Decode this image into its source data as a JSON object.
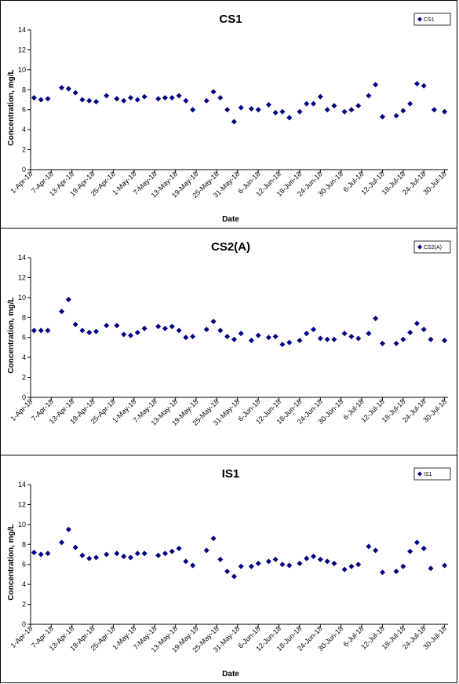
{
  "chart_data": [
    {
      "type": "scatter",
      "title": "CS1",
      "xlabel": "Date",
      "ylabel": "Concentration, mg/L",
      "legend": "CS1",
      "legend_position": "top-right",
      "grid": false,
      "ylim": [
        0,
        14
      ],
      "yticks": [
        "0",
        "2",
        "4",
        "6",
        "8",
        "10",
        "12",
        "14"
      ],
      "xlim": [
        "1-Apr-18",
        "31-Jul-18"
      ],
      "xticks": [
        "1-Apr-18",
        "7-Apr-18",
        "13-Apr-18",
        "19-Apr-18",
        "25-Apr-18",
        "1-May-18",
        "7-May-18",
        "13-May-18",
        "19-May-18",
        "25-May-18",
        "31-May-18",
        "6-Jun-18",
        "12-Jun-18",
        "18-Jun-18",
        "24-Jun-18",
        "30-Jun-18",
        "6-Jul-18",
        "12-Jul-18",
        "18-Jul-18",
        "24-Jul-18",
        "30-Jul-18"
      ],
      "marker_color": "#000080",
      "x": [
        "2-Apr-18",
        "4-Apr-18",
        "6-Apr-18",
        "10-Apr-18",
        "12-Apr-18",
        "14-Apr-18",
        "16-Apr-18",
        "18-Apr-18",
        "20-Apr-18",
        "23-Apr-18",
        "26-Apr-18",
        "28-Apr-18",
        "30-Apr-18",
        "2-May-18",
        "4-May-18",
        "8-May-18",
        "10-May-18",
        "12-May-18",
        "14-May-18",
        "16-May-18",
        "18-May-18",
        "22-May-18",
        "24-May-18",
        "26-May-18",
        "28-May-18",
        "30-May-18",
        "1-Jun-18",
        "4-Jun-18",
        "6-Jun-18",
        "9-Jun-18",
        "11-Jun-18",
        "13-Jun-18",
        "15-Jun-18",
        "18-Jun-18",
        "20-Jun-18",
        "22-Jun-18",
        "24-Jun-18",
        "26-Jun-18",
        "28-Jun-18",
        "1-Jul-18",
        "3-Jul-18",
        "5-Jul-18",
        "8-Jul-18",
        "10-Jul-18",
        "12-Jul-18",
        "16-Jul-18",
        "18-Jul-18",
        "20-Jul-18",
        "22-Jul-18",
        "24-Jul-18",
        "27-Jul-18",
        "30-Jul-18"
      ],
      "y": [
        7.2,
        7.0,
        7.1,
        8.2,
        8.1,
        7.7,
        7.0,
        6.9,
        6.8,
        7.4,
        7.1,
        6.9,
        7.2,
        7.0,
        7.3,
        7.1,
        7.2,
        7.2,
        7.4,
        6.9,
        6.0,
        6.9,
        7.8,
        7.2,
        6.0,
        4.8,
        6.2,
        6.1,
        6.0,
        6.5,
        5.7,
        5.8,
        5.2,
        5.8,
        6.6,
        6.6,
        7.3,
        6.0,
        6.4,
        5.8,
        6.0,
        6.4,
        7.4,
        8.5,
        5.3,
        5.4,
        5.9,
        6.6,
        8.6,
        8.4,
        6.0,
        5.8
      ]
    },
    {
      "type": "scatter",
      "title": "CS2(A)",
      "xlabel": "",
      "ylabel": "Concentration, mg/L",
      "legend": "CS2(A)",
      "legend_position": "top-right",
      "grid": false,
      "ylim": [
        0,
        14
      ],
      "yticks": [
        "0",
        "2",
        "4",
        "6",
        "8",
        "10",
        "12",
        "14"
      ],
      "xlim": [
        "1-Apr-18",
        "31-Jul-18"
      ],
      "xticks": [
        "1-Apr-18",
        "7-Apr-18",
        "13-Apr-18",
        "19-Apr-18",
        "25-Apr-18",
        "1-May-18",
        "7-May-18",
        "13-May-18",
        "19-May-18",
        "25-May-18",
        "31-May-18",
        "6-Jun-18",
        "12-Jun-18",
        "18-Jun-18",
        "24-Jun-18",
        "30-Jun-18",
        "6-Jul-18",
        "12-Jul-18",
        "18-Jul-18",
        "24-Jul-18",
        "30-Jul-18"
      ],
      "marker_color": "#000080",
      "x": [
        "2-Apr-18",
        "4-Apr-18",
        "6-Apr-18",
        "10-Apr-18",
        "12-Apr-18",
        "14-Apr-18",
        "16-Apr-18",
        "18-Apr-18",
        "20-Apr-18",
        "23-Apr-18",
        "26-Apr-18",
        "28-Apr-18",
        "30-Apr-18",
        "2-May-18",
        "4-May-18",
        "8-May-18",
        "10-May-18",
        "12-May-18",
        "14-May-18",
        "16-May-18",
        "18-May-18",
        "22-May-18",
        "24-May-18",
        "26-May-18",
        "28-May-18",
        "30-May-18",
        "1-Jun-18",
        "4-Jun-18",
        "6-Jun-18",
        "9-Jun-18",
        "11-Jun-18",
        "13-Jun-18",
        "15-Jun-18",
        "18-Jun-18",
        "20-Jun-18",
        "22-Jun-18",
        "24-Jun-18",
        "26-Jun-18",
        "28-Jun-18",
        "1-Jul-18",
        "3-Jul-18",
        "5-Jul-18",
        "8-Jul-18",
        "10-Jul-18",
        "12-Jul-18",
        "16-Jul-18",
        "18-Jul-18",
        "20-Jul-18",
        "22-Jul-18",
        "24-Jul-18",
        "26-Jul-18",
        "30-Jul-18"
      ],
      "y": [
        6.7,
        6.7,
        6.7,
        8.6,
        9.8,
        7.3,
        6.7,
        6.5,
        6.6,
        7.2,
        7.2,
        6.3,
        6.2,
        6.5,
        6.9,
        7.1,
        6.9,
        7.1,
        6.7,
        6.0,
        6.1,
        6.8,
        7.6,
        6.7,
        6.1,
        5.8,
        6.4,
        5.7,
        6.2,
        6.0,
        6.1,
        5.3,
        5.5,
        5.7,
        6.4,
        6.8,
        5.9,
        5.8,
        5.8,
        6.4,
        6.1,
        5.9,
        6.4,
        7.9,
        5.4,
        5.4,
        5.8,
        6.5,
        7.4,
        6.8,
        5.8,
        5.7
      ]
    },
    {
      "type": "scatter",
      "title": "IS1",
      "xlabel": "Date",
      "ylabel": "Concentration, mg/L",
      "legend": "IS1",
      "legend_position": "top-right",
      "grid": false,
      "ylim": [
        0,
        14
      ],
      "yticks": [
        "0",
        "2",
        "4",
        "6",
        "8",
        "10",
        "12",
        "14"
      ],
      "xlim": [
        "1-Apr-18",
        "31-Jul-18"
      ],
      "xticks": [
        "1-Apr-18",
        "7-Apr-18",
        "13-Apr-18",
        "19-Apr-18",
        "25-Apr-18",
        "1-May-18",
        "7-May-18",
        "13-May-18",
        "19-May-18",
        "25-May-18",
        "31-May-18",
        "6-Jun-18",
        "12-Jun-18",
        "18-Jun-18",
        "24-Jun-18",
        "30-Jun-18",
        "6-Jul-18",
        "12-Jul-18",
        "18-Jul-18",
        "24-Jul-18",
        "30-Jul-18"
      ],
      "marker_color": "#000080",
      "x": [
        "2-Apr-18",
        "4-Apr-18",
        "6-Apr-18",
        "10-Apr-18",
        "12-Apr-18",
        "14-Apr-18",
        "16-Apr-18",
        "18-Apr-18",
        "20-Apr-18",
        "23-Apr-18",
        "26-Apr-18",
        "28-Apr-18",
        "30-Apr-18",
        "2-May-18",
        "4-May-18",
        "8-May-18",
        "10-May-18",
        "12-May-18",
        "14-May-18",
        "16-May-18",
        "18-May-18",
        "22-May-18",
        "24-May-18",
        "26-May-18",
        "28-May-18",
        "30-May-18",
        "1-Jun-18",
        "4-Jun-18",
        "6-Jun-18",
        "9-Jun-18",
        "11-Jun-18",
        "13-Jun-18",
        "15-Jun-18",
        "18-Jun-18",
        "20-Jun-18",
        "22-Jun-18",
        "24-Jun-18",
        "26-Jun-18",
        "28-Jun-18",
        "1-Jul-18",
        "3-Jul-18",
        "5-Jul-18",
        "8-Jul-18",
        "10-Jul-18",
        "12-Jul-18",
        "16-Jul-18",
        "18-Jul-18",
        "20-Jul-18",
        "22-Jul-18",
        "24-Jul-18",
        "26-Jul-18",
        "30-Jul-18"
      ],
      "y": [
        7.2,
        7.0,
        7.1,
        8.2,
        9.5,
        7.7,
        6.9,
        6.6,
        6.7,
        7.0,
        7.1,
        6.8,
        6.7,
        7.1,
        7.1,
        6.9,
        7.1,
        7.3,
        7.6,
        6.3,
        5.9,
        7.4,
        8.6,
        6.5,
        5.3,
        4.8,
        5.8,
        5.8,
        6.1,
        6.3,
        6.5,
        6.0,
        5.9,
        6.1,
        6.6,
        6.8,
        6.5,
        6.3,
        6.1,
        5.5,
        5.8,
        6.0,
        7.8,
        7.4,
        5.2,
        5.3,
        5.8,
        7.3,
        8.2,
        7.6,
        5.6,
        5.9
      ]
    }
  ]
}
